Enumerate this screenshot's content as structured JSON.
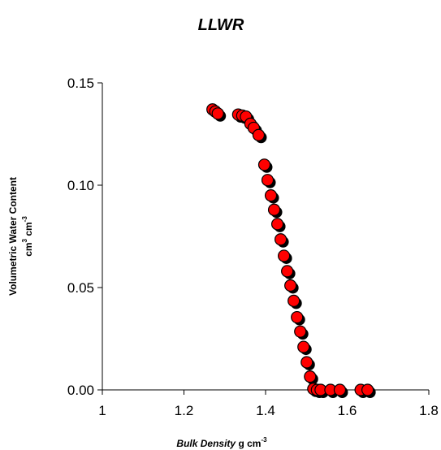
{
  "chart_data": {
    "type": "scatter",
    "title": "LLWR",
    "xlabel": {
      "name": "Bulk Density",
      "unit_base": "g cm",
      "unit_exp": "-3"
    },
    "ylabel": {
      "name": "Volumetric Water Content",
      "unit_a_base": "cm",
      "unit_a_exp": "3",
      "unit_b_base": " cm",
      "unit_b_exp": "-3"
    },
    "xlim": [
      1,
      1.8
    ],
    "ylim": [
      0,
      0.15
    ],
    "x_ticks": [
      {
        "value": 1,
        "label": "1"
      },
      {
        "value": 1.2,
        "label": "1.2"
      },
      {
        "value": 1.4,
        "label": "1.4"
      },
      {
        "value": 1.6,
        "label": "1.6"
      },
      {
        "value": 1.8,
        "label": "1.8"
      }
    ],
    "y_ticks": [
      {
        "value": 0,
        "label": "0.00"
      },
      {
        "value": 0.05,
        "label": "0.05"
      },
      {
        "value": 0.1,
        "label": "0.10"
      },
      {
        "value": 0.15,
        "label": "0.15"
      }
    ],
    "grid": false,
    "marker": {
      "fill": "#ff0000",
      "stroke": "#000000",
      "shadow": "#000000"
    },
    "points": [
      {
        "x": 1.27,
        "y": 0.137
      },
      {
        "x": 1.277,
        "y": 0.136
      },
      {
        "x": 1.283,
        "y": 0.135
      },
      {
        "x": 1.333,
        "y": 0.1345
      },
      {
        "x": 1.343,
        "y": 0.134
      },
      {
        "x": 1.352,
        "y": 0.1335
      },
      {
        "x": 1.363,
        "y": 0.13
      },
      {
        "x": 1.371,
        "y": 0.128
      },
      {
        "x": 1.383,
        "y": 0.1245
      },
      {
        "x": 1.397,
        "y": 0.11
      },
      {
        "x": 1.405,
        "y": 0.1025
      },
      {
        "x": 1.413,
        "y": 0.095
      },
      {
        "x": 1.421,
        "y": 0.088
      },
      {
        "x": 1.429,
        "y": 0.081
      },
      {
        "x": 1.437,
        "y": 0.0735
      },
      {
        "x": 1.445,
        "y": 0.0655
      },
      {
        "x": 1.453,
        "y": 0.058
      },
      {
        "x": 1.461,
        "y": 0.051
      },
      {
        "x": 1.469,
        "y": 0.0435
      },
      {
        "x": 1.477,
        "y": 0.0355
      },
      {
        "x": 1.485,
        "y": 0.0285
      },
      {
        "x": 1.493,
        "y": 0.021
      },
      {
        "x": 1.501,
        "y": 0.0135
      },
      {
        "x": 1.509,
        "y": 0.0065
      },
      {
        "x": 1.517,
        "y": 0.0005
      },
      {
        "x": 1.526,
        "y": 0.0
      },
      {
        "x": 1.535,
        "y": 0.0
      },
      {
        "x": 1.559,
        "y": 0.0
      },
      {
        "x": 1.582,
        "y": 0.0
      },
      {
        "x": 1.633,
        "y": 0.0
      },
      {
        "x": 1.65,
        "y": 0.0
      }
    ]
  }
}
